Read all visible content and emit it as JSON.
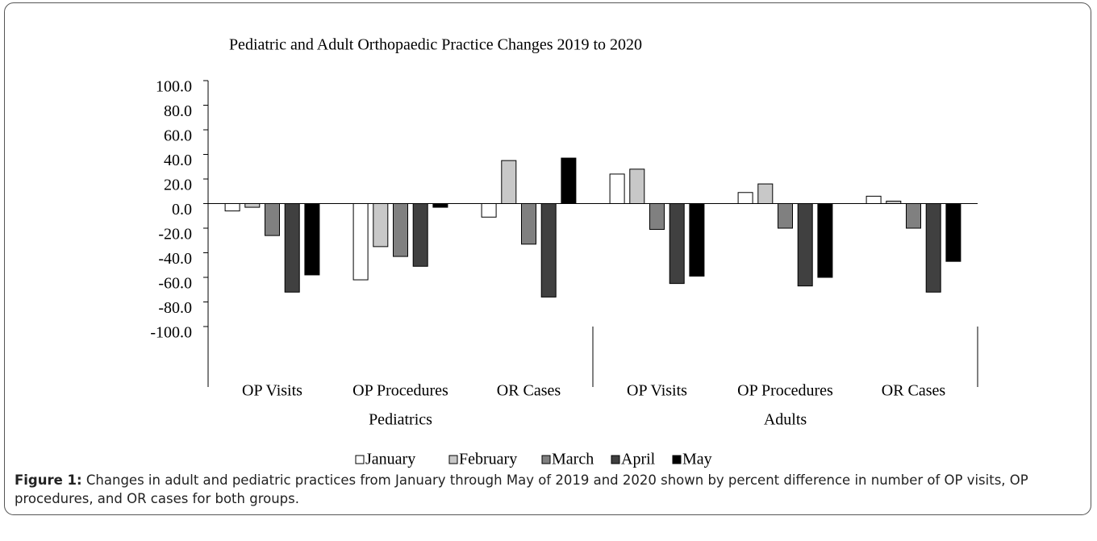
{
  "chart_data": {
    "type": "bar",
    "title": "Pediatric and Adult Orthopaedic Practice Changes 2019 to 2020",
    "categories": [
      "OP Visits",
      "OP Procedures",
      "OR Cases",
      "OP Visits",
      "OP Procedures",
      "OR Cases"
    ],
    "groups": [
      {
        "name": "Pediatrics",
        "span": [
          0,
          3
        ]
      },
      {
        "name": "Adults",
        "span": [
          3,
          6
        ]
      }
    ],
    "series": [
      {
        "name": "January",
        "color": "#ffffff",
        "values": [
          -6,
          -62,
          -11,
          24,
          9,
          6
        ]
      },
      {
        "name": "February",
        "color": "#c8c8c8",
        "values": [
          -3,
          -35,
          35,
          28,
          16,
          2
        ]
      },
      {
        "name": "March",
        "color": "#808080",
        "values": [
          -26,
          -43,
          -33,
          -21,
          -20,
          -20
        ]
      },
      {
        "name": "April",
        "color": "#404040",
        "values": [
          -72,
          -51,
          -76,
          -65,
          -67,
          -72
        ]
      },
      {
        "name": "May",
        "color": "#000000",
        "values": [
          -58,
          -3,
          37,
          -59,
          -60,
          -47
        ]
      }
    ],
    "ylim": [
      -100,
      100
    ],
    "yticks": [
      {
        "value": 100,
        "label": "100.0"
      },
      {
        "value": 80,
        "label": "80.0"
      },
      {
        "value": 60,
        "label": "60.0"
      },
      {
        "value": 40,
        "label": "40.0"
      },
      {
        "value": 20,
        "label": "20.0"
      },
      {
        "value": 0,
        "label": "0.0"
      },
      {
        "value": -20,
        "label": "-20.0"
      },
      {
        "value": -40,
        "label": "-40.0"
      },
      {
        "value": -60,
        "label": "-60.0"
      },
      {
        "value": -80,
        "label": "-80.0"
      },
      {
        "value": -100,
        "label": "-100.0"
      }
    ],
    "grid": false,
    "legend": "bottom"
  },
  "caption": {
    "label": "Figure 1:",
    "text": "Changes in adult and pediatric practices from January through May of 2019 and 2020 shown by percent difference in number of OP visits, OP procedures, and OR cases for both groups."
  }
}
